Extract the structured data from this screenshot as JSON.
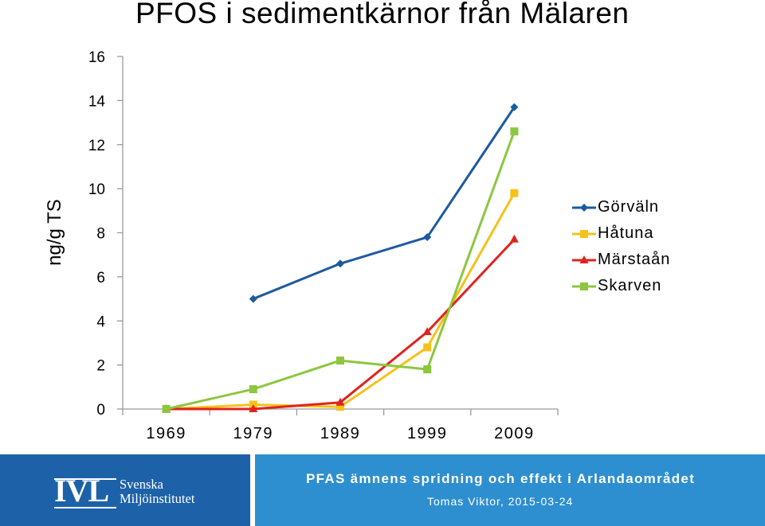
{
  "chart_data": {
    "type": "line",
    "title": "PFOS i sedimentkärnor från Mälaren",
    "ylabel": "ng/g TS",
    "xlabel": "",
    "categories": [
      "1969",
      "1979",
      "1989",
      "1999",
      "2009"
    ],
    "yticks": [
      0,
      2,
      4,
      6,
      8,
      10,
      12,
      14,
      16
    ],
    "ylim": [
      0,
      16
    ],
    "grid": false,
    "legend_position": "right",
    "series": [
      {
        "name": "Görväln",
        "color": "#1d5aa0",
        "marker": "diamond",
        "values": [
          null,
          5.0,
          6.6,
          7.8,
          13.7
        ]
      },
      {
        "name": "Håtuna",
        "color": "#f5c21b",
        "marker": "square",
        "values": [
          0.0,
          0.2,
          0.1,
          2.8,
          9.8
        ]
      },
      {
        "name": "Märstaån",
        "color": "#e0231f",
        "marker": "triangle",
        "values": [
          0.0,
          0.0,
          0.3,
          3.5,
          7.7
        ]
      },
      {
        "name": "Skarven",
        "color": "#8dc63f",
        "marker": "square",
        "values": [
          0.0,
          0.9,
          2.2,
          1.8,
          12.6
        ]
      }
    ]
  },
  "footer": {
    "logo_letters": "IVL",
    "logo_line1": "Svenska",
    "logo_line2": "Miljöinstitutet",
    "title": "PFAS ämnens spridning och effekt i Arlandaområdet",
    "author": "Tomas Viktor, 2015-03-24"
  }
}
